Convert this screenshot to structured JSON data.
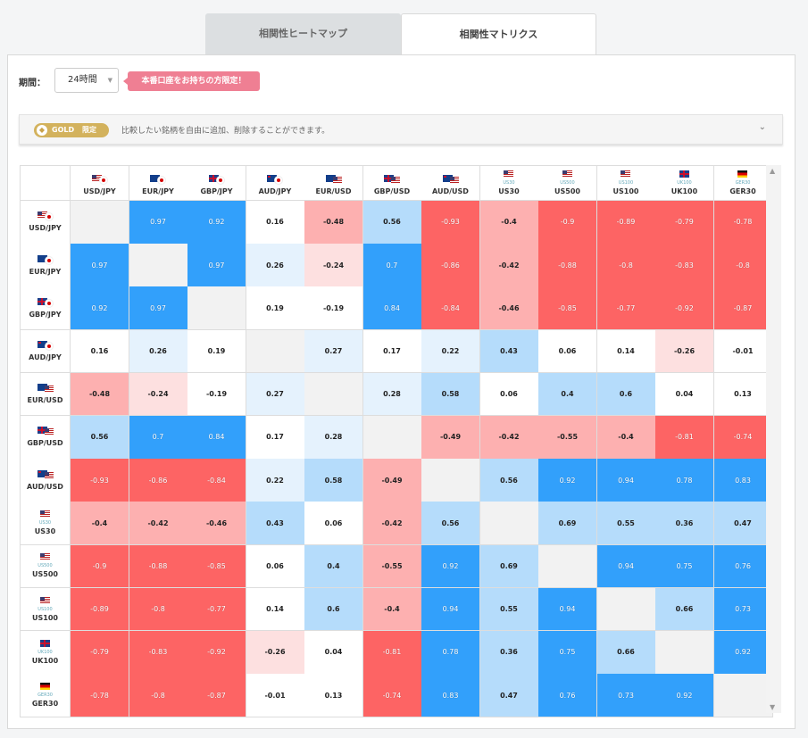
{
  "tabs": {
    "heatmap_label": "相関性ヒートマップ",
    "matrix_label": "相関性マトリクス"
  },
  "period": {
    "label": "期間：",
    "selected": "24時間"
  },
  "live_badge": "本番口座をお持ちの方限定！",
  "gold": {
    "badge_text": "GOLD",
    "badge_tag": "限定",
    "message": "比較したい銘柄を自由に追加、削除することができます。"
  },
  "colors": {
    "strong_pos": "#32a0fb",
    "mid_pos": "#b5dcfb",
    "weak_pos": "#e5f2fd",
    "strong_neg": "#fd6464",
    "mid_neg": "#fdb0b0",
    "weak_neg": "#fde0e0",
    "neutral": "#ffffff",
    "diag": "#f2f2f2"
  },
  "symbols": [
    {
      "label": "USD/JPY",
      "flag": "us-jp"
    },
    {
      "label": "EUR/JPY",
      "flag": "eu-jp"
    },
    {
      "label": "GBP/JPY",
      "flag": "gb-jp"
    },
    {
      "label": "AUD/JPY",
      "flag": "au-jp"
    },
    {
      "label": "EUR/USD",
      "flag": "eu-us"
    },
    {
      "label": "GBP/USD",
      "flag": "gb-us"
    },
    {
      "label": "AUD/USD",
      "flag": "au-us"
    },
    {
      "label": "US30",
      "flag": "us",
      "sub": "US30"
    },
    {
      "label": "US500",
      "flag": "us",
      "sub": "US500"
    },
    {
      "label": "US100",
      "flag": "us",
      "sub": "US100"
    },
    {
      "label": "UK100",
      "flag": "gb",
      "sub": "UK100"
    },
    {
      "label": "GER30",
      "flag": "de",
      "sub": "GER30"
    }
  ],
  "matrix": [
    [
      null,
      0.97,
      0.92,
      0.16,
      -0.48,
      0.56,
      -0.93,
      -0.4,
      -0.9,
      -0.89,
      -0.79,
      -0.78
    ],
    [
      0.97,
      null,
      0.97,
      0.26,
      -0.24,
      0.7,
      -0.86,
      -0.42,
      -0.88,
      -0.8,
      -0.83,
      -0.8
    ],
    [
      0.92,
      0.97,
      null,
      0.19,
      -0.19,
      0.84,
      -0.84,
      -0.46,
      -0.85,
      -0.77,
      -0.92,
      -0.87
    ],
    [
      0.16,
      0.26,
      0.19,
      null,
      0.27,
      0.17,
      0.22,
      0.43,
      0.06,
      0.14,
      -0.26,
      -0.01
    ],
    [
      -0.48,
      -0.24,
      -0.19,
      0.27,
      null,
      0.28,
      0.58,
      0.06,
      0.4,
      0.6,
      0.04,
      0.13
    ],
    [
      0.56,
      0.7,
      0.84,
      0.17,
      0.28,
      null,
      -0.49,
      -0.42,
      -0.55,
      -0.4,
      -0.81,
      -0.74
    ],
    [
      -0.93,
      -0.86,
      -0.84,
      0.22,
      0.58,
      -0.49,
      null,
      0.56,
      0.92,
      0.94,
      0.78,
      0.83
    ],
    [
      -0.4,
      -0.42,
      -0.46,
      0.43,
      0.06,
      -0.42,
      0.56,
      null,
      0.69,
      0.55,
      0.36,
      0.47
    ],
    [
      -0.9,
      -0.88,
      -0.85,
      0.06,
      0.4,
      -0.55,
      0.92,
      0.69,
      null,
      0.94,
      0.75,
      0.76
    ],
    [
      -0.89,
      -0.8,
      -0.77,
      0.14,
      0.6,
      -0.4,
      0.94,
      0.55,
      0.94,
      null,
      0.66,
      0.73
    ],
    [
      -0.79,
      -0.83,
      -0.92,
      -0.26,
      0.04,
      -0.81,
      0.78,
      0.36,
      0.75,
      0.66,
      null,
      0.92
    ],
    [
      -0.78,
      -0.8,
      -0.87,
      -0.01,
      0.13,
      -0.74,
      0.83,
      0.47,
      0.76,
      0.73,
      0.92,
      null
    ]
  ]
}
